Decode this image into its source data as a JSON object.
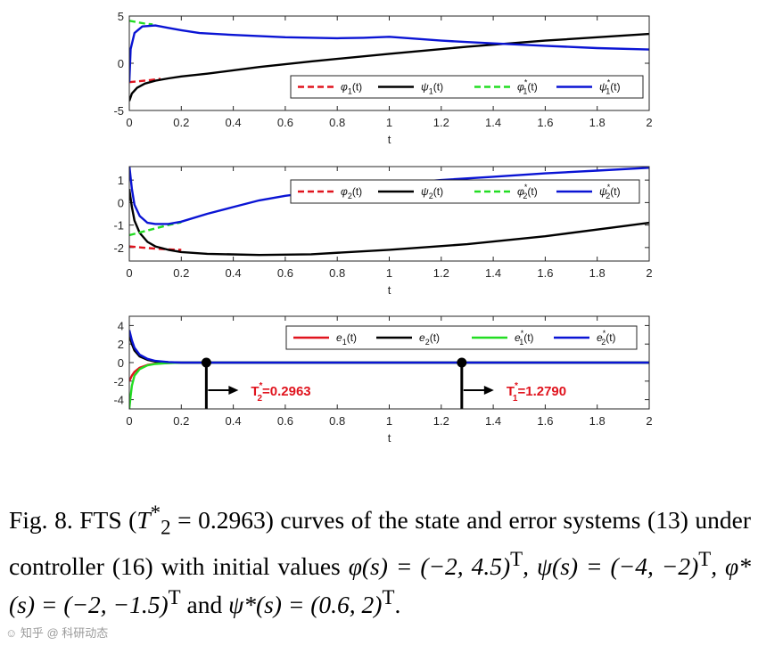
{
  "chart_data": [
    {
      "type": "line",
      "xlabel": "t",
      "xlim": [
        0,
        2
      ],
      "ylim": [
        -5,
        5
      ],
      "xticks": [
        "0",
        "0.2",
        "0.4",
        "0.6",
        "0.8",
        "1",
        "1.2",
        "1.4",
        "1.6",
        "1.8",
        "2"
      ],
      "yticks": [
        "-5",
        "0",
        "5"
      ],
      "legend_position": "bottom-right",
      "series": [
        {
          "name": "φ1(t)",
          "style": "dashed",
          "color": "#e0141e",
          "x": [
            0,
            0.04,
            0.08,
            0.12
          ],
          "y": [
            -2.0,
            -1.9,
            -1.78,
            -1.65
          ]
        },
        {
          "name": "ψ1(t)",
          "style": "solid",
          "color": "#000000",
          "x": [
            0,
            0.01,
            0.03,
            0.06,
            0.1,
            0.15,
            0.2,
            0.3,
            0.5,
            0.7,
            1.0,
            1.3,
            1.6,
            2.0
          ],
          "y": [
            -4.0,
            -3.2,
            -2.6,
            -2.15,
            -1.85,
            -1.6,
            -1.4,
            -1.1,
            -0.4,
            0.2,
            1.0,
            1.75,
            2.4,
            3.1
          ]
        },
        {
          "name": "φ1*(t)",
          "style": "dashed",
          "color": "#22dd22",
          "x": [
            0,
            0.03,
            0.06,
            0.09
          ],
          "y": [
            4.5,
            4.35,
            4.2,
            4.1
          ]
        },
        {
          "name": "ψ1*(t)",
          "style": "solid",
          "color": "#0a14d4",
          "x": [
            0,
            0.005,
            0.02,
            0.05,
            0.1,
            0.15,
            0.2,
            0.27,
            0.4,
            0.6,
            0.8,
            0.9,
            1.0,
            1.1,
            1.2,
            1.3,
            1.4,
            1.6,
            1.8,
            2.0
          ],
          "y": [
            -2.0,
            1.5,
            3.2,
            3.9,
            4.0,
            3.75,
            3.5,
            3.2,
            3.0,
            2.75,
            2.65,
            2.7,
            2.8,
            2.6,
            2.4,
            2.25,
            2.1,
            1.85,
            1.6,
            1.45
          ]
        }
      ]
    },
    {
      "type": "line",
      "xlabel": "t",
      "xlim": [
        0,
        2
      ],
      "ylim": [
        -2.6,
        1.6
      ],
      "xticks": [
        "0",
        "0.2",
        "0.4",
        "0.6",
        "0.8",
        "1",
        "1.2",
        "1.4",
        "1.6",
        "1.8",
        "2"
      ],
      "yticks": [
        "-2",
        "-1",
        "0",
        "1"
      ],
      "legend_position": "top-right",
      "series": [
        {
          "name": "φ2(t)",
          "style": "dashed",
          "color": "#e0141e",
          "x": [
            0,
            0.05,
            0.1,
            0.15,
            0.2
          ],
          "y": [
            -1.95,
            -2.0,
            -2.05,
            -2.08,
            -2.1
          ]
        },
        {
          "name": "ψ2(t)",
          "style": "solid",
          "color": "#000000",
          "x": [
            0,
            0.01,
            0.02,
            0.04,
            0.07,
            0.1,
            0.15,
            0.2,
            0.3,
            0.5,
            0.7,
            1.0,
            1.3,
            1.6,
            2.0
          ],
          "y": [
            0.6,
            -0.2,
            -0.8,
            -1.35,
            -1.75,
            -1.95,
            -2.1,
            -2.2,
            -2.28,
            -2.33,
            -2.3,
            -2.1,
            -1.85,
            -1.5,
            -0.9
          ]
        },
        {
          "name": "φ2*(t)",
          "style": "dashed",
          "color": "#22dd22",
          "x": [
            0,
            0.05,
            0.1,
            0.15,
            0.2
          ],
          "y": [
            -1.45,
            -1.3,
            -1.15,
            -1.0,
            -0.88
          ]
        },
        {
          "name": "ψ2*(t)",
          "style": "solid",
          "color": "#0a14d4",
          "x": [
            0,
            0.01,
            0.02,
            0.04,
            0.07,
            0.1,
            0.15,
            0.2,
            0.3,
            0.4,
            0.5,
            0.6,
            0.8,
            1.0,
            1.2,
            1.4,
            1.6,
            1.8,
            2.0
          ],
          "y": [
            1.65,
            0.6,
            -0.1,
            -0.6,
            -0.9,
            -0.95,
            -0.95,
            -0.85,
            -0.5,
            -0.2,
            0.1,
            0.3,
            0.6,
            0.82,
            1.0,
            1.15,
            1.3,
            1.42,
            1.55
          ]
        }
      ]
    },
    {
      "type": "line",
      "xlabel": "t",
      "xlim": [
        0,
        2
      ],
      "ylim": [
        -5,
        5
      ],
      "xticks": [
        "0",
        "0.2",
        "0.4",
        "0.6",
        "0.8",
        "1",
        "1.2",
        "1.4",
        "1.6",
        "1.8",
        "2"
      ],
      "yticks": [
        "-4",
        "-2",
        "0",
        "2",
        "4"
      ],
      "legend_position": "top-right",
      "series": [
        {
          "name": "e1(t)",
          "style": "solid",
          "color": "#e0141e",
          "x": [
            0,
            0.01,
            0.02,
            0.04,
            0.07,
            0.1,
            0.15,
            0.2,
            2.0
          ],
          "y": [
            -2.0,
            -1.4,
            -1.0,
            -0.55,
            -0.25,
            -0.12,
            -0.04,
            0,
            0
          ]
        },
        {
          "name": "e2(t)",
          "style": "solid",
          "color": "#000000",
          "x": [
            0,
            0.01,
            0.02,
            0.04,
            0.07,
            0.1,
            0.15,
            0.2,
            2.0
          ],
          "y": [
            3.0,
            2.0,
            1.3,
            0.65,
            0.3,
            0.12,
            0.04,
            0,
            0
          ]
        },
        {
          "name": "e1*(t)",
          "style": "solid",
          "color": "#22dd22",
          "x": [
            0,
            0.005,
            0.01,
            0.02,
            0.04,
            0.07,
            0.1,
            0.15,
            0.2,
            2.0
          ],
          "y": [
            -5.0,
            -3.6,
            -2.5,
            -1.4,
            -0.7,
            -0.3,
            -0.14,
            -0.05,
            0,
            0
          ]
        },
        {
          "name": "e2*(t)",
          "style": "solid",
          "color": "#0a14d4",
          "x": [
            0,
            0.01,
            0.02,
            0.04,
            0.07,
            0.1,
            0.15,
            0.2,
            2.0
          ],
          "y": [
            3.5,
            2.4,
            1.6,
            0.85,
            0.4,
            0.18,
            0.06,
            0,
            0
          ]
        }
      ],
      "annotations": [
        {
          "x": 0.2963,
          "label": "T",
          "sup": "*",
          "sub": "2",
          "value": "=0.2963"
        },
        {
          "x": 1.279,
          "label": "T",
          "sup": "*",
          "sub": "1",
          "value": "=1.2790"
        }
      ]
    }
  ],
  "caption": {
    "part1": "Fig. 8. FTS (",
    "t2": "T",
    "t2_sup": "*",
    "t2_sub": "2",
    "eq": " = 0.2963) curves of the state and error systems (13) under controller (16) with initial values ",
    "phi": "φ(s) = (−2, 4.5)",
    "phi_T": "T",
    "psi": ", ψ(s) = (−4, −2)",
    "psi_T": "T",
    "phistar": ", φ*(s) = (−2, −1.5)",
    "phistar_T": "T",
    "and": " and ",
    "psistar": "ψ*(s) = (0.6, 2)",
    "psistar_T": "T",
    "end": "."
  },
  "watermark": "☺ 知乎 @ 科研动态"
}
